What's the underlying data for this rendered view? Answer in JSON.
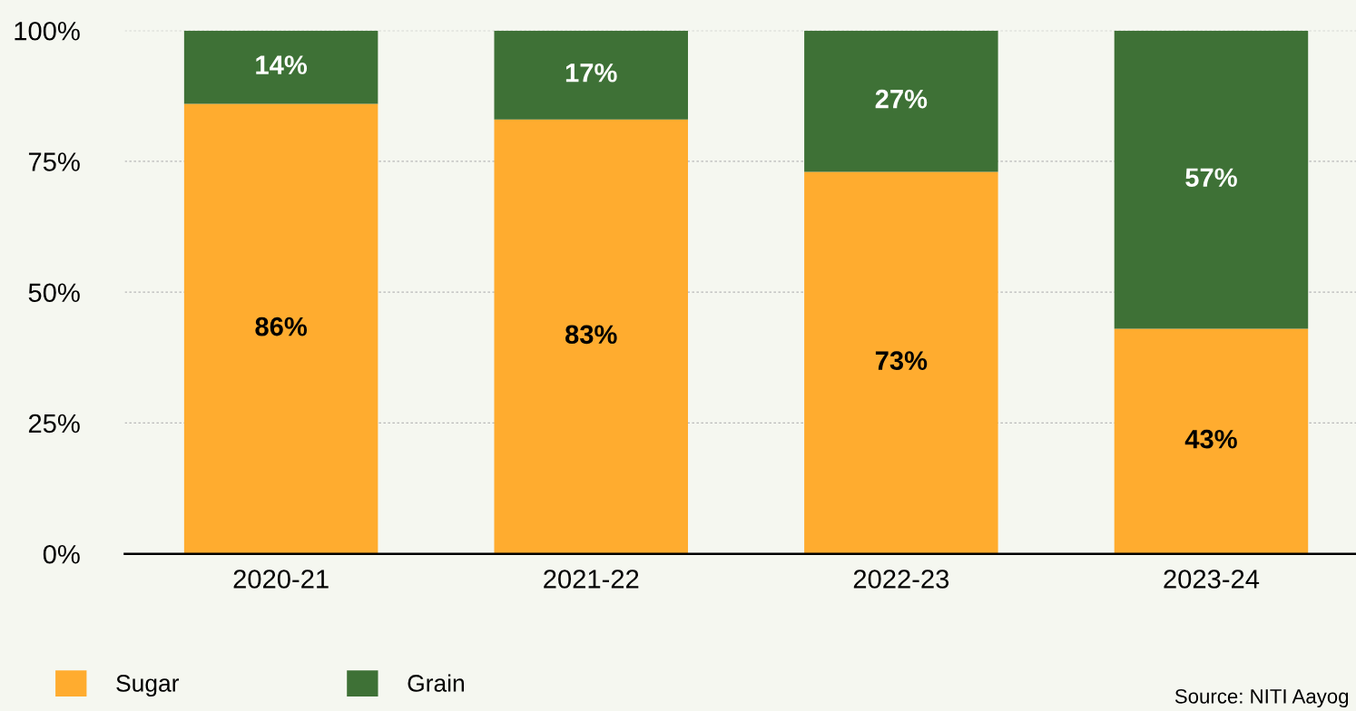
{
  "chart_data": {
    "type": "bar",
    "stacked": true,
    "categories": [
      "2020-21",
      "2021-22",
      "2022-23",
      "2023-24"
    ],
    "series": [
      {
        "name": "Sugar",
        "color": "#ffac2f",
        "values": [
          86,
          83,
          73,
          43
        ]
      },
      {
        "name": "Grain",
        "color": "#3e7136",
        "values": [
          14,
          17,
          27,
          57
        ]
      }
    ],
    "ylim": [
      0,
      100
    ],
    "yticks": [
      {
        "value": 0,
        "label": "0%"
      },
      {
        "value": 25,
        "label": "25%"
      },
      {
        "value": 50,
        "label": "50%"
      },
      {
        "value": 75,
        "label": "75%"
      },
      {
        "value": 100,
        "label": "100%"
      }
    ],
    "value_labels": [
      [
        "86%",
        "83%",
        "73%",
        "43%"
      ],
      [
        "14%",
        "17%",
        "27%",
        "57%"
      ]
    ],
    "grid": "y",
    "legend": "bottom left",
    "annotations": [
      "Source: NITI Aayog"
    ]
  }
}
